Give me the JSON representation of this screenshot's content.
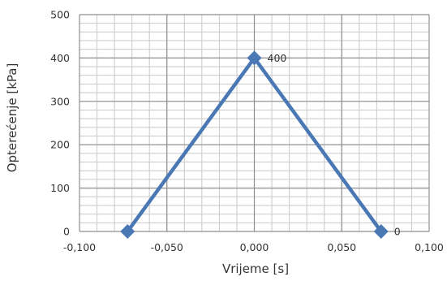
{
  "chart_data": {
    "type": "scatter",
    "xlabel": "Vrijeme [s]",
    "ylabel": "Opterećenje [kPa]",
    "xlim": [
      -0.1,
      0.1
    ],
    "ylim": [
      0,
      500
    ],
    "x_ticks": [
      -0.1,
      -0.05,
      0,
      0.05,
      0.1
    ],
    "x_tick_labels": [
      "-0,100",
      "-0,050",
      "0,000",
      "0,050",
      "0,100"
    ],
    "y_ticks": [
      0,
      100,
      200,
      300,
      400,
      500
    ],
    "y_tick_labels": [
      "0",
      "100",
      "200",
      "300",
      "400",
      "500"
    ],
    "minor_x_step": 0.01,
    "minor_y_step": 20,
    "grid": true,
    "legend": "none",
    "series": [
      {
        "color": "#4a78b4",
        "marker": "diamond",
        "points": [
          {
            "x": -0.0725,
            "y": 0
          },
          {
            "x": 0.0,
            "y": 400
          },
          {
            "x": 0.0725,
            "y": 0
          }
        ]
      }
    ],
    "data_labels": [
      {
        "point": 1,
        "text": "400"
      },
      {
        "point": 2,
        "text": "0"
      }
    ]
  }
}
